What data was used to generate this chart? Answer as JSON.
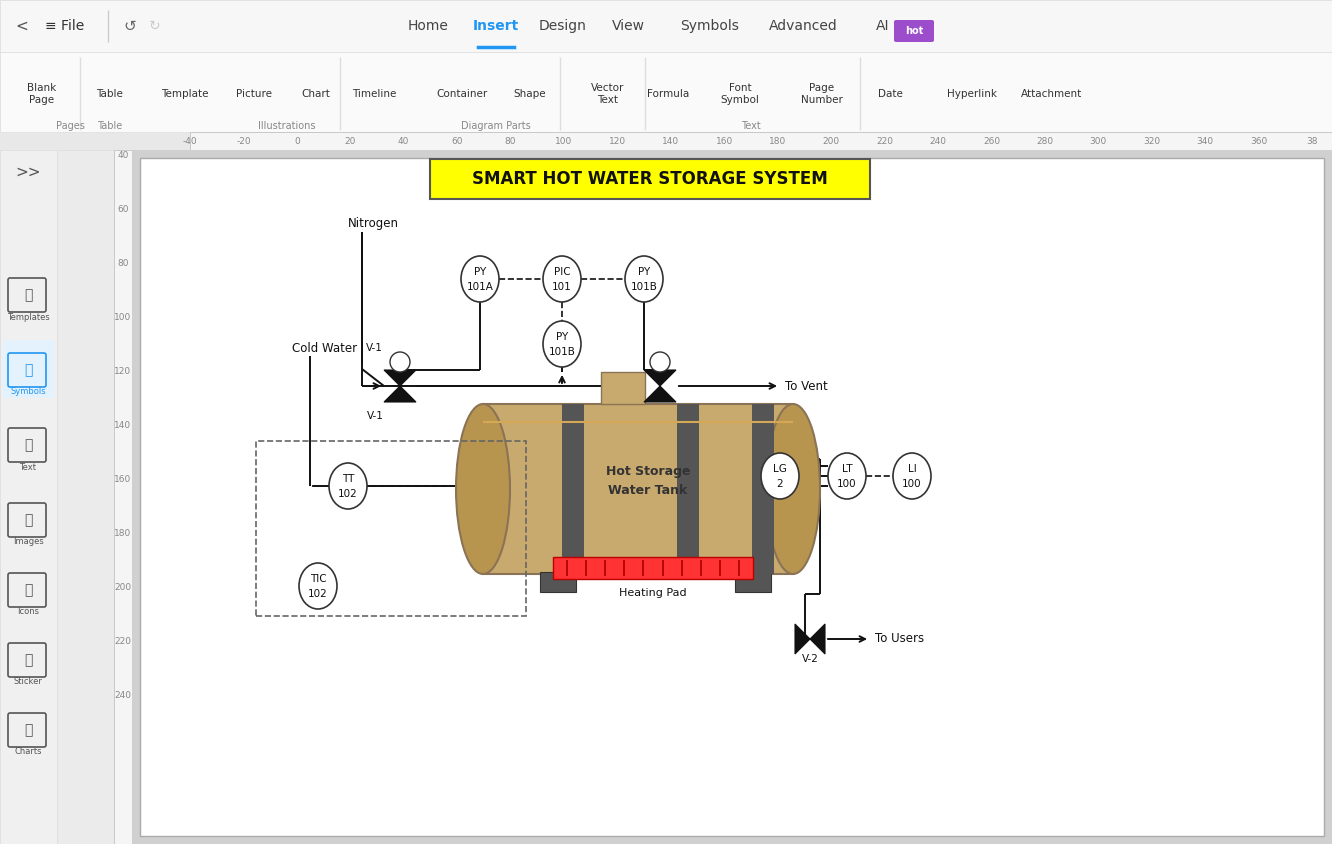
{
  "title": "SMART HOT WATER STORAGE SYSTEM",
  "title_bg": "#FFFF00",
  "tank_color": "#C8A96E",
  "tank_end_color": "#B8954E",
  "tank_band_color": "#555555",
  "tank_highlight": "#D4A855",
  "heating_pad_color": "#FF3333",
  "menu_items": [
    "Home",
    "Insert",
    "Design",
    "View",
    "Symbols",
    "Advanced",
    "AI"
  ],
  "toolbar_items": [
    "Blank\nPage",
    "Table",
    "Template",
    "Picture",
    "Chart",
    "Timeline",
    "Container",
    "Shape",
    "Vector\nText",
    "Formula",
    "Font\nSymbol",
    "Page\nNumber",
    "Date",
    "Hyperlink",
    "Attachment"
  ],
  "sidebar_items": [
    ">>",
    "Templates",
    "Symbols",
    "Text",
    "Images",
    "Icons",
    "Sticker",
    "Charts"
  ],
  "ruler_vals": [
    "-40",
    "-20",
    "0",
    "20",
    "40",
    "60",
    "80",
    "100",
    "120",
    "140",
    "160",
    "180",
    "200",
    "220",
    "240",
    "260",
    "280",
    "300",
    "320",
    "340",
    "360",
    "38"
  ],
  "left_ruler_vals": [
    "40",
    "60",
    "80",
    "100",
    "120",
    "140",
    "160",
    "180",
    "200",
    "220",
    "240"
  ],
  "line_color": "#111111",
  "instrument_border": "#333333",
  "bg_gray": "#E8E8E8",
  "panel_gray": "#EBEBEB",
  "page_white": "#FFFFFF",
  "sidebar_bg": "#F0F0F0",
  "topbar_bg": "#F7F7F7"
}
